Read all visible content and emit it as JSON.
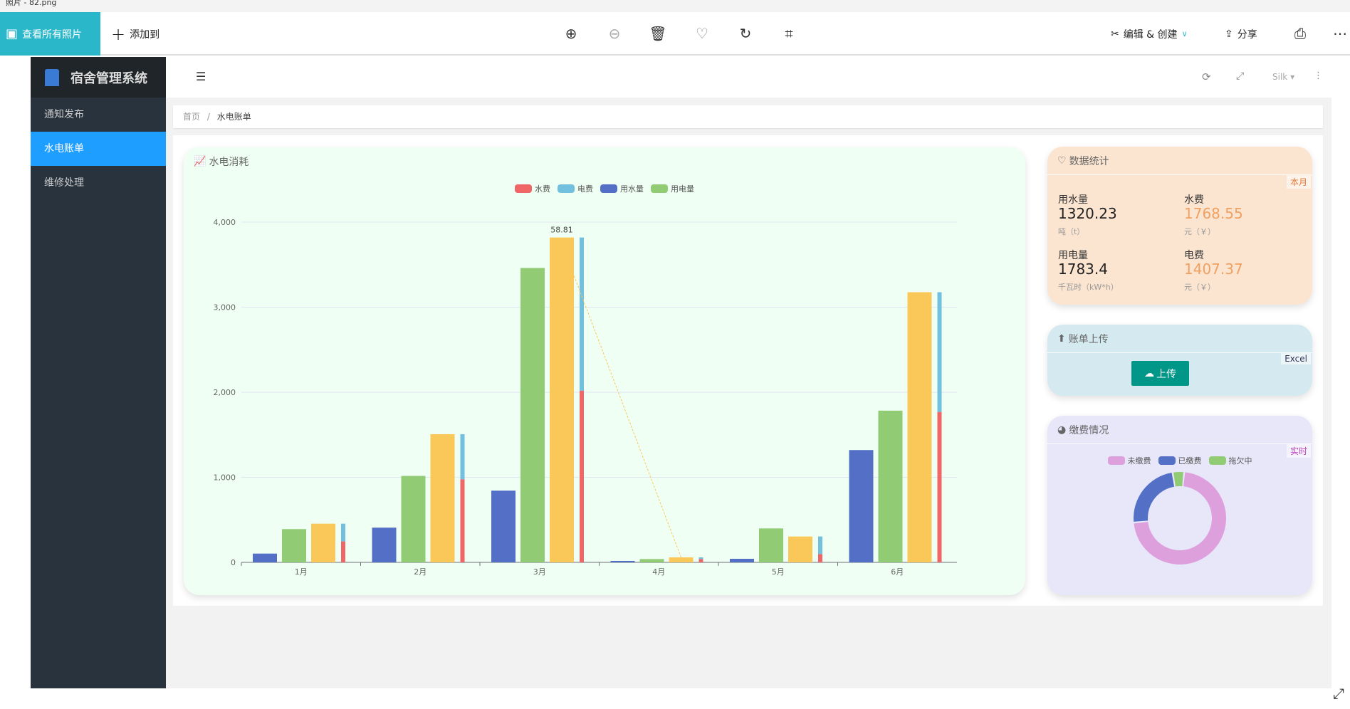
{
  "window": {
    "title": "照片 - 82.png"
  },
  "photos_toolbar": {
    "view_all": "查看所有照片",
    "add_to": "添加到",
    "edit_create": "编辑 & 创建",
    "share": "分享",
    "icons": [
      "zoom-in-icon",
      "zoom-out-icon",
      "delete-icon",
      "heart-icon",
      "rotate-icon",
      "crop-icon"
    ]
  },
  "sidebar": {
    "app_title": "宿舍管理系统",
    "items": [
      {
        "label": "通知发布"
      },
      {
        "label": "水电账单",
        "active": true
      },
      {
        "label": "维修处理"
      }
    ],
    "active_color": "#1e9fff"
  },
  "header": {
    "theme": "Silk"
  },
  "breadcrumb": {
    "home": "首页",
    "separator": "/",
    "current": "水电账单"
  },
  "chart_card": {
    "title": "水电消耗"
  },
  "stats": {
    "title": "数据统计",
    "badge": "本月",
    "items": [
      {
        "label": "用水量",
        "value": "1320.23",
        "unit": "吨（t）"
      },
      {
        "label": "水费",
        "value": "1768.55",
        "unit": "元（￥）"
      },
      {
        "label": "用电量",
        "value": "1783.4",
        "unit": "千瓦时（kW*h）"
      },
      {
        "label": "电费",
        "value": "1407.37",
        "unit": "元（￥）"
      }
    ],
    "highlight_color": "#f0a060"
  },
  "upload": {
    "title": "账单上传",
    "badge": "Excel",
    "button": "上传",
    "button_color": "#009688"
  },
  "payment": {
    "title": "缴费情况",
    "badge": "实时",
    "chart_data": {
      "type": "pie",
      "donut": true,
      "slices": [
        {
          "name": "未缴费",
          "value": 72,
          "color": "#dda0dd"
        },
        {
          "name": "已缴费",
          "value": 24,
          "color": "#5470c6"
        },
        {
          "name": "拖欠中",
          "value": 4,
          "color": "#91cc75"
        }
      ]
    }
  },
  "chart_data": {
    "type": "bar",
    "title": "",
    "xlabel": "",
    "ylabel": "",
    "ylim": [
      0,
      4000
    ],
    "grid": true,
    "legend_position": "top",
    "categories": [
      "1月",
      "2月",
      "3月",
      "4月",
      "5月",
      "6月"
    ],
    "yticks": [
      "0",
      "1,000",
      "2,000",
      "3,000",
      "4,000"
    ],
    "series": [
      {
        "name": "用水量",
        "color": "#5470c6",
        "values": [
          103,
          408,
          843,
          17,
          42,
          1320.23
        ]
      },
      {
        "name": "用电量",
        "color": "#91cc75",
        "values": [
          391,
          1016,
          3461,
          39,
          399,
          1783.4
        ]
      },
      {
        "color": "#fac858",
        "values": [
          455,
          1507,
          3819,
          58.81,
          304,
          3175.92
        ]
      },
      {
        "name": "水费",
        "color": "#ee6666",
        "stack": "fee",
        "values": [
          246,
          977,
          2018,
          39,
          98,
          1768.55
        ]
      },
      {
        "name": "电费",
        "color": "#73c0de",
        "stack": "fee",
        "values": [
          209,
          530,
          1801,
          19.81,
          206,
          1407.37
        ]
      }
    ],
    "data_label": "58.81"
  }
}
